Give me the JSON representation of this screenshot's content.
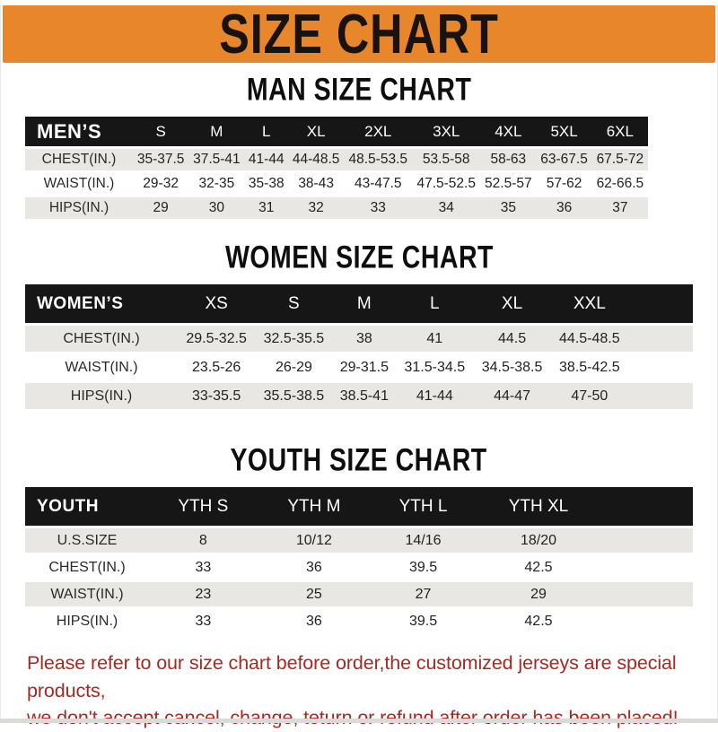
{
  "banner": {
    "title": "SIZE CHART"
  },
  "tables": {
    "men": {
      "title": "MAN SIZE CHART",
      "group_label": "MEN’S",
      "sizes": [
        "S",
        "M",
        "L",
        "XL",
        "2XL",
        "3XL",
        "4XL",
        "5XL",
        "6XL"
      ],
      "rows": [
        {
          "label": "CHEST(IN.)",
          "values": [
            "35-37.5",
            "37.5-41",
            "41-44",
            "44-48.5",
            "48.5-53.5",
            "53.5-58",
            "58-63",
            "63-67.5",
            "67.5-72"
          ]
        },
        {
          "label": "WAIST(IN.)",
          "values": [
            "29-32",
            "32-35",
            "35-38",
            "38-43",
            "43-47.5",
            "47.5-52.5",
            "52.5-57",
            "57-62",
            "62-66.5"
          ]
        },
        {
          "label": "HIPS(IN.)",
          "values": [
            "29",
            "30",
            "31",
            "32",
            "33",
            "34",
            "35",
            "36",
            "37"
          ]
        }
      ]
    },
    "women": {
      "title": "WOMEN SIZE CHART",
      "group_label": "WOMEN’S",
      "sizes": [
        "XS",
        "S",
        "M",
        "L",
        "XL",
        "XXL"
      ],
      "rows": [
        {
          "label": "CHEST(IN.)",
          "values": [
            "29.5-32.5",
            "32.5-35.5",
            "38",
            "41",
            "44.5",
            "44.5-48.5"
          ]
        },
        {
          "label": "WAIST(IN.)",
          "values": [
            "23.5-26",
            "26-29",
            "29-31.5",
            "31.5-34.5",
            "34.5-38.5",
            "38.5-42.5"
          ]
        },
        {
          "label": "HIPS(IN.)",
          "values": [
            "33-35.5",
            "35.5-38.5",
            "38.5-41",
            "41-44",
            "44-47",
            "47-50"
          ]
        }
      ]
    },
    "youth": {
      "title": "YOUTH SIZE CHART",
      "group_label": "YOUTH",
      "sizes": [
        "YTH S",
        "YTH M",
        "YTH L",
        "YTH XL"
      ],
      "rows": [
        {
          "label": "U.S.SIZE",
          "values": [
            "8",
            "10/12",
            "14/16",
            "18/20"
          ]
        },
        {
          "label": "CHEST(IN.)",
          "values": [
            "33",
            "36",
            "39.5",
            "42.5"
          ]
        },
        {
          "label": "WAIST(IN.)",
          "values": [
            "23",
            "25",
            "27",
            "29"
          ]
        },
        {
          "label": "HIPS(IN.)",
          "values": [
            "33",
            "36",
            "39.5",
            "42.5"
          ]
        }
      ]
    }
  },
  "disclaimer": {
    "line1": "Please refer to our size chart before order,the customized jerseys are special products,",
    "line2": "we don't accept cancel, change, teturn or refund after order has been placed!"
  },
  "colors": {
    "banner_orange": "#E8862B",
    "banner_text": "#181310",
    "header_black": "#161616",
    "row_gray": "#E8E7E4",
    "disclaimer_red": "#A42A22"
  }
}
